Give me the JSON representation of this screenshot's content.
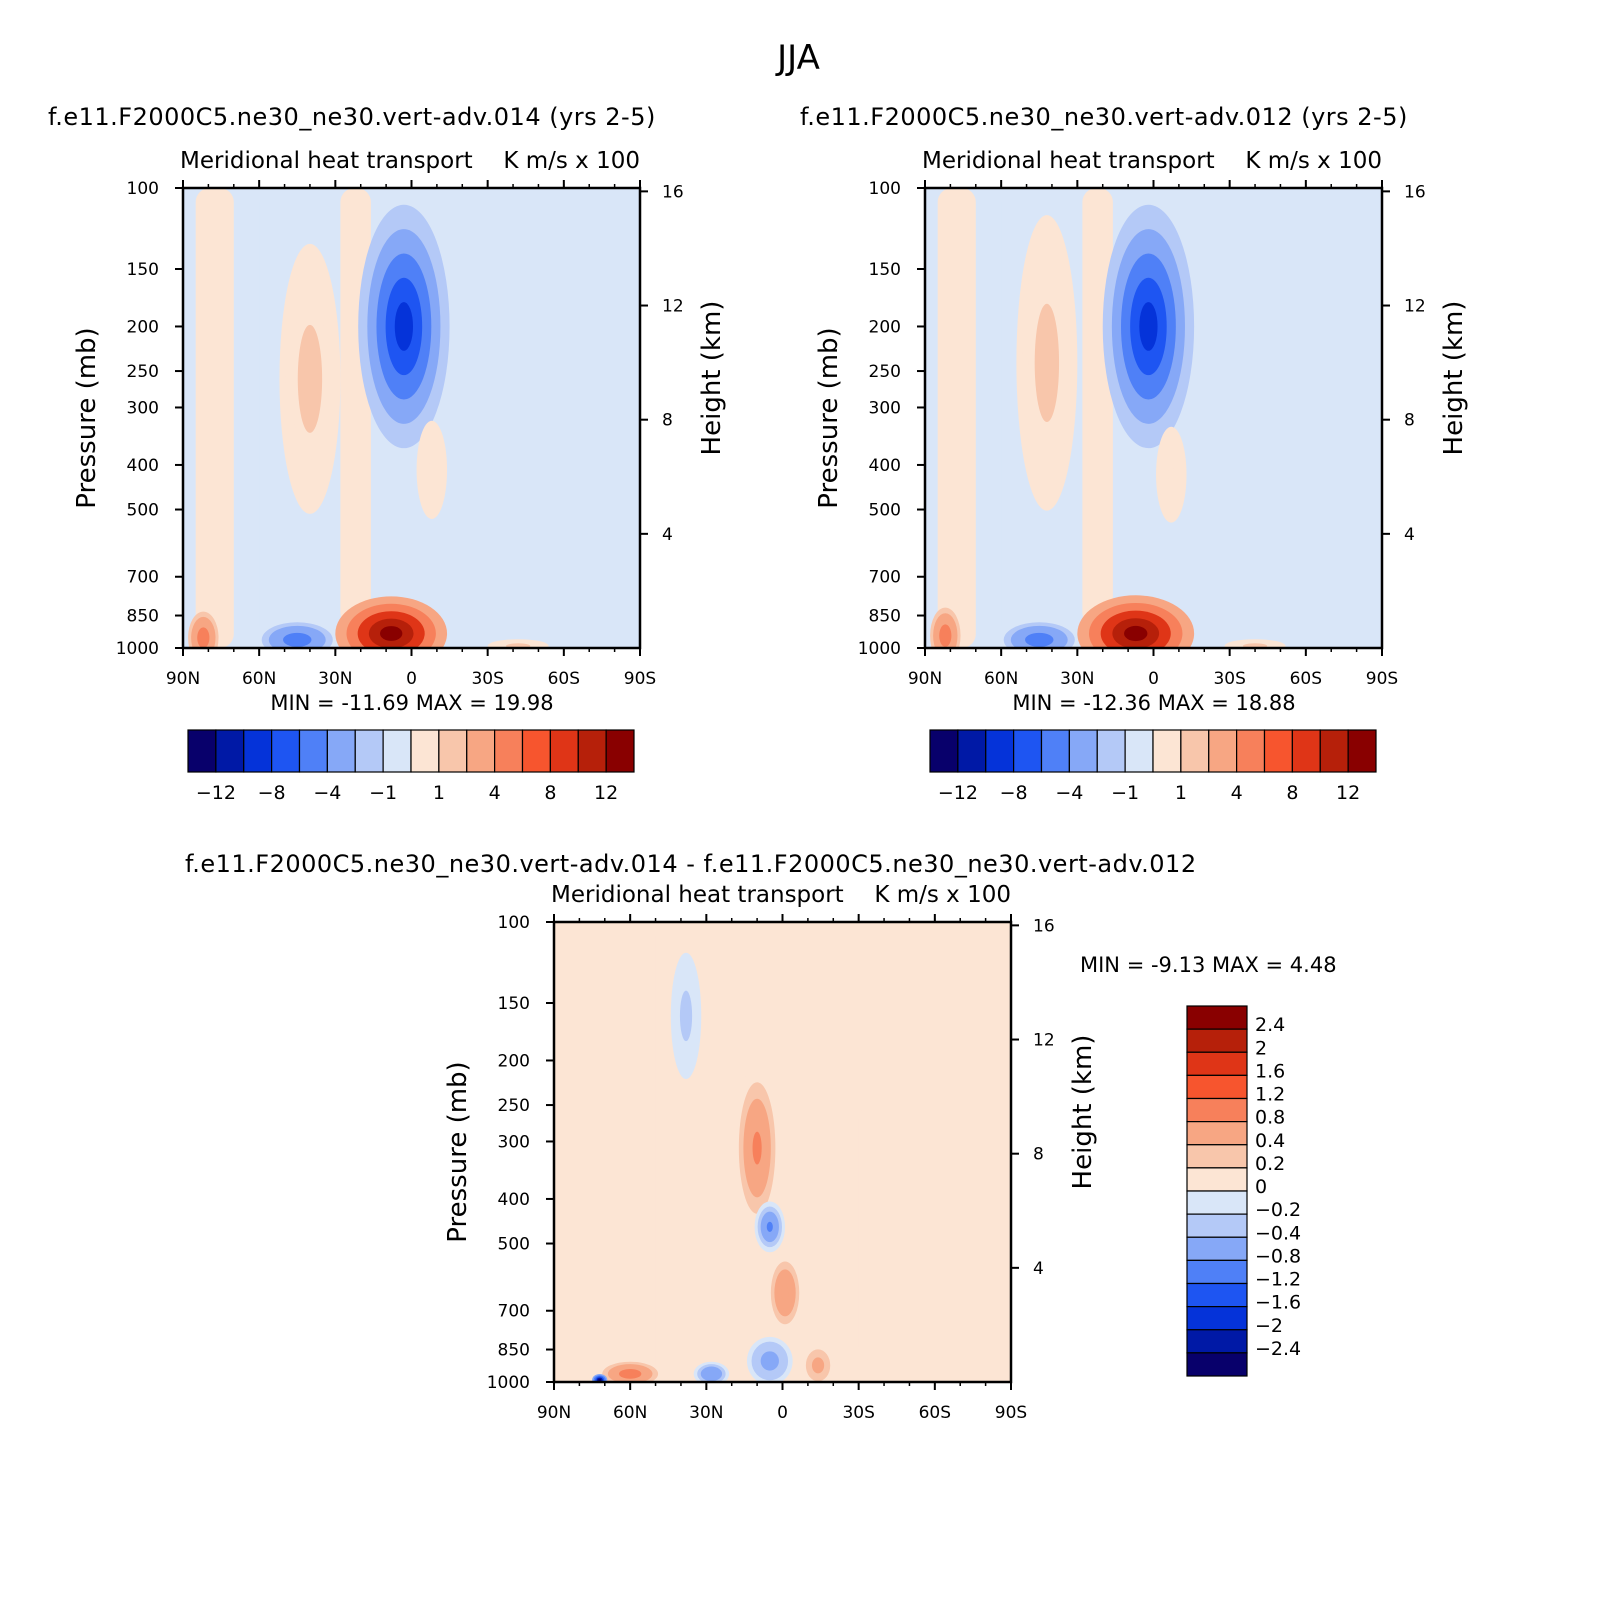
{
  "figure": {
    "title": "JJA"
  },
  "chart_data": [
    {
      "type": "heatmap",
      "case_title": "f.e11.F2000C5.ne30_ne30.vert-adv.014 (yrs 2-5)",
      "left_label": "Meridional heat transport",
      "right_label": "K m/s x 100",
      "ylabel": "Pressure (mb)",
      "ylabel_right": "Height (km)",
      "x_ticks": [
        "90N",
        "60N",
        "30N",
        "0",
        "30S",
        "60S",
        "90S"
      ],
      "y_ticks": [
        "100",
        "150",
        "200",
        "250",
        "300",
        "400",
        "500",
        "700",
        "850",
        "1000"
      ],
      "y_ticks_right": [
        "16",
        "12",
        "8",
        "4"
      ],
      "stats": {
        "min_label": "MIN =",
        "min": "-11.69",
        "max_label": "MAX =",
        "max": "19.98"
      },
      "colorbar": {
        "orientation": "horizontal",
        "labels": [
          "-12",
          "-8",
          "-4",
          "-1",
          "1",
          "4",
          "8",
          "12"
        ],
        "colors": [
          "#08006b",
          "#0019a6",
          "#0533d9",
          "#1e55f2",
          "#4f80f7",
          "#86a8f7",
          "#b4c9f7",
          "#d9e6f8",
          "#fce5d4",
          "#f8c6ab",
          "#f7a683",
          "#f7805b",
          "#f7552e",
          "#df3517",
          "#b6200a",
          "#890000"
        ]
      },
      "features": [
        {
          "kind": "band",
          "x0": -85,
          "x1": -70,
          "p_top": 100,
          "p_bot": 1000,
          "value": 0.5
        },
        {
          "kind": "band",
          "x0": -60,
          "x1": -35,
          "p_top": 100,
          "p_bot": 960,
          "value": -0.5
        },
        {
          "kind": "band",
          "x0": -28,
          "x1": -16,
          "p_top": 100,
          "p_bot": 900,
          "value": 0.5
        },
        {
          "kind": "blob",
          "lat": 3,
          "p": 200,
          "rx": 18,
          "rp": 140,
          "value": -9
        },
        {
          "kind": "blob",
          "lat": 40,
          "p": 260,
          "rx": 12,
          "rp": 200,
          "value": 1.3
        },
        {
          "kind": "blob",
          "lat": 8,
          "p": 930,
          "rx": 22,
          "rp": 260,
          "value": 15
        },
        {
          "kind": "blob",
          "lat": -8,
          "p": 410,
          "rx": 6,
          "rp": 120,
          "value": 0.6
        },
        {
          "kind": "blob",
          "lat": 45,
          "p": 960,
          "rx": 14,
          "rp": 120,
          "value": -5
        },
        {
          "kind": "blob",
          "lat": 82,
          "p": 950,
          "rx": 6,
          "rp": 190,
          "value": 6
        },
        {
          "kind": "blob",
          "lat": -42,
          "p": 990,
          "rx": 12,
          "rp": 60,
          "value": 1.5
        }
      ]
    },
    {
      "type": "heatmap",
      "case_title": "f.e11.F2000C5.ne30_ne30.vert-adv.012 (yrs 2-5)",
      "left_label": "Meridional heat transport",
      "right_label": "K m/s x 100",
      "ylabel": "Pressure (mb)",
      "ylabel_right": "Height (km)",
      "x_ticks": [
        "90N",
        "60N",
        "30N",
        "0",
        "30S",
        "60S",
        "90S"
      ],
      "y_ticks": [
        "100",
        "150",
        "200",
        "250",
        "300",
        "400",
        "500",
        "700",
        "850",
        "1000"
      ],
      "y_ticks_right": [
        "16",
        "12",
        "8",
        "4"
      ],
      "stats": {
        "min_label": "MIN =",
        "min": "-12.36",
        "max_label": "MAX =",
        "max": "18.88"
      },
      "colorbar": {
        "orientation": "horizontal",
        "labels": [
          "-12",
          "-8",
          "-4",
          "-1",
          "1",
          "4",
          "8",
          "12"
        ],
        "colors": [
          "#08006b",
          "#0019a6",
          "#0533d9",
          "#1e55f2",
          "#4f80f7",
          "#86a8f7",
          "#b4c9f7",
          "#d9e6f8",
          "#fce5d4",
          "#f8c6ab",
          "#f7a683",
          "#f7805b",
          "#f7552e",
          "#df3517",
          "#b6200a",
          "#890000"
        ]
      },
      "features": [
        {
          "kind": "band",
          "x0": -85,
          "x1": -70,
          "p_top": 100,
          "p_bot": 1000,
          "value": 0.5
        },
        {
          "kind": "band",
          "x0": -60,
          "x1": -35,
          "p_top": 100,
          "p_bot": 960,
          "value": -0.5
        },
        {
          "kind": "band",
          "x0": -28,
          "x1": -16,
          "p_top": 100,
          "p_bot": 900,
          "value": 0.5
        },
        {
          "kind": "blob",
          "lat": 2,
          "p": 200,
          "rx": 18,
          "rp": 140,
          "value": -9.5
        },
        {
          "kind": "blob",
          "lat": 42,
          "p": 240,
          "rx": 12,
          "rp": 200,
          "value": 1.3
        },
        {
          "kind": "blob",
          "lat": 7,
          "p": 930,
          "rx": 23,
          "rp": 270,
          "value": 14.5
        },
        {
          "kind": "blob",
          "lat": -7,
          "p": 420,
          "rx": 6,
          "rp": 120,
          "value": 0.6
        },
        {
          "kind": "blob",
          "lat": 45,
          "p": 960,
          "rx": 14,
          "rp": 120,
          "value": -5.5
        },
        {
          "kind": "blob",
          "lat": 82,
          "p": 940,
          "rx": 6,
          "rp": 190,
          "value": 6
        },
        {
          "kind": "blob",
          "lat": -40,
          "p": 990,
          "rx": 12,
          "rp": 60,
          "value": 1.5
        }
      ]
    },
    {
      "type": "heatmap",
      "case_title": "f.e11.F2000C5.ne30_ne30.vert-adv.014 - f.e11.F2000C5.ne30_ne30.vert-adv.012",
      "left_label": "Meridional heat transport",
      "right_label": "K m/s x 100",
      "ylabel": "Pressure (mb)",
      "ylabel_right": "Height (km)",
      "x_ticks": [
        "90N",
        "60N",
        "30N",
        "0",
        "30S",
        "60S",
        "90S"
      ],
      "y_ticks": [
        "100",
        "150",
        "200",
        "250",
        "300",
        "400",
        "500",
        "700",
        "850",
        "1000"
      ],
      "y_ticks_right": [
        "16",
        "12",
        "8",
        "4"
      ],
      "stats": {
        "min_label": "MIN =",
        "min": "-9.13",
        "max_label": "MAX =",
        "max": "4.48"
      },
      "colorbar": {
        "orientation": "vertical",
        "labels": [
          "2.4",
          "2",
          "1.6",
          "1.2",
          "0.8",
          "0.4",
          "0.2",
          "0",
          "-0.2",
          "-0.4",
          "-0.8",
          "-1.2",
          "-1.6",
          "-2",
          "-2.4"
        ],
        "colors": [
          "#890000",
          "#b6200a",
          "#df3517",
          "#f7552e",
          "#f7805b",
          "#f7a683",
          "#f8c6ab",
          "#fce5d4",
          "#d9e6f8",
          "#b4c9f7",
          "#86a8f7",
          "#4f80f7",
          "#1e55f2",
          "#0533d9",
          "#0019a6",
          "#08006b"
        ]
      },
      "features": [
        {
          "kind": "band",
          "x0": -80,
          "x1": -65,
          "p_top": 150,
          "p_bot": 1000,
          "value": 0.1
        },
        {
          "kind": "band",
          "x0": -50,
          "x1": -30,
          "p_top": 100,
          "p_bot": 1000,
          "value": 0.1
        },
        {
          "kind": "band",
          "x0": 30,
          "x1": 65,
          "p_top": 250,
          "p_bot": 900,
          "value": 0.1
        },
        {
          "kind": "blob",
          "lat": 10,
          "p": 310,
          "rx": 9,
          "rp": 150,
          "value": 0.9
        },
        {
          "kind": "blob",
          "lat": 5,
          "p": 460,
          "rx": 6,
          "rp": 70,
          "value": -0.8
        },
        {
          "kind": "blob",
          "lat": -1,
          "p": 640,
          "rx": 7,
          "rp": 150,
          "value": 0.7
        },
        {
          "kind": "blob",
          "lat": 5,
          "p": 900,
          "rx": 9,
          "rp": 130,
          "value": -0.6
        },
        {
          "kind": "blob",
          "lat": -14,
          "p": 920,
          "rx": 6,
          "rp": 110,
          "value": 0.6
        },
        {
          "kind": "blob",
          "lat": 28,
          "p": 960,
          "rx": 7,
          "rp": 70,
          "value": -0.7
        },
        {
          "kind": "blob",
          "lat": 60,
          "p": 960,
          "rx": 11,
          "rp": 70,
          "value": 1.1
        },
        {
          "kind": "blob",
          "lat": 72,
          "p": 990,
          "rx": 3,
          "rp": 30,
          "value": -2.6
        },
        {
          "kind": "blob",
          "lat": 38,
          "p": 160,
          "rx": 6,
          "rp": 60,
          "value": -0.3
        }
      ]
    }
  ]
}
